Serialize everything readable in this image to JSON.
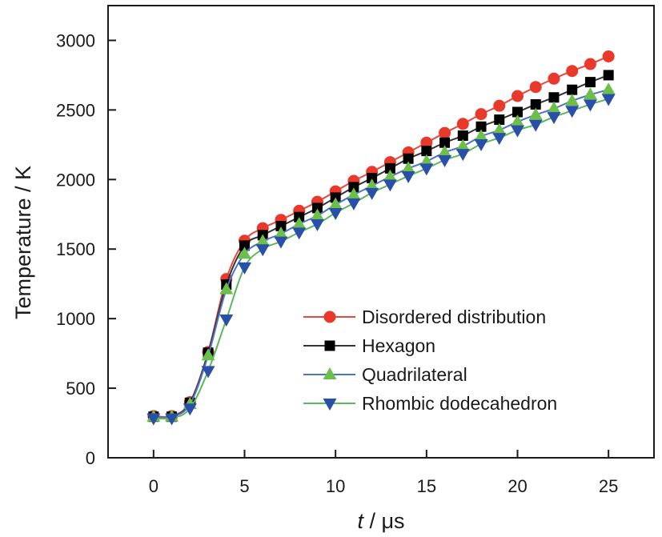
{
  "chart_data": {
    "type": "line",
    "title": "",
    "xlabel_italic": "t",
    "xlabel_rest": " / μs",
    "ylabel": "Temperature / K",
    "xlim": [
      -2.5,
      27.5
    ],
    "ylim": [
      0,
      3250
    ],
    "xticks": [
      0,
      5,
      10,
      15,
      20,
      25
    ],
    "xtick_labels": [
      "0",
      "5",
      "10",
      "15",
      "20",
      "25"
    ],
    "yticks": [
      0,
      500,
      1000,
      1500,
      2000,
      2500,
      3000
    ],
    "ytick_labels": [
      "0",
      "500",
      "1000",
      "1500",
      "2000",
      "2500",
      "3000"
    ],
    "grid": false,
    "legend_position": "lower-right",
    "x": [
      0,
      1,
      2,
      3,
      4,
      5,
      6,
      7,
      8,
      9,
      10,
      11,
      12,
      13,
      14,
      15,
      16,
      17,
      18,
      19,
      20,
      21,
      22,
      23,
      24,
      25
    ],
    "series": [
      {
        "name": "Disordered distribution",
        "marker": "circle",
        "line_color": "#e8473c",
        "marker_color": "#e8392a",
        "values": [
          300,
          300,
          400,
          760,
          1285,
          1560,
          1650,
          1710,
          1775,
          1840,
          1915,
          1990,
          2055,
          2125,
          2195,
          2265,
          2335,
          2400,
          2470,
          2530,
          2600,
          2665,
          2725,
          2780,
          2830,
          2885
        ]
      },
      {
        "name": "Hexagon",
        "marker": "square",
        "line_color": "#333333",
        "marker_color": "#000000",
        "values": [
          295,
          295,
          395,
          755,
          1245,
          1525,
          1600,
          1665,
          1730,
          1795,
          1870,
          1945,
          2010,
          2080,
          2150,
          2205,
          2265,
          2315,
          2380,
          2430,
          2485,
          2540,
          2590,
          2645,
          2700,
          2750
        ]
      },
      {
        "name": "Quadrilateral",
        "marker": "triangle-up",
        "line_color": "#4a74c9",
        "marker_color": "#6cc04a",
        "values": [
          295,
          295,
          385,
          735,
          1210,
          1465,
          1555,
          1610,
          1680,
          1740,
          1820,
          1890,
          1955,
          2020,
          2080,
          2130,
          2195,
          2240,
          2310,
          2355,
          2415,
          2465,
          2510,
          2565,
          2610,
          2645
        ]
      },
      {
        "name": "Rhombic dodecahedron",
        "marker": "triangle-down",
        "line_color": "#5cb85c",
        "marker_color": "#2a4fa8",
        "values": [
          285,
          285,
          355,
          625,
          995,
          1370,
          1500,
          1555,
          1620,
          1680,
          1760,
          1830,
          1905,
          1965,
          2025,
          2080,
          2140,
          2185,
          2255,
          2300,
          2355,
          2395,
          2450,
          2495,
          2540,
          2580
        ]
      }
    ]
  }
}
